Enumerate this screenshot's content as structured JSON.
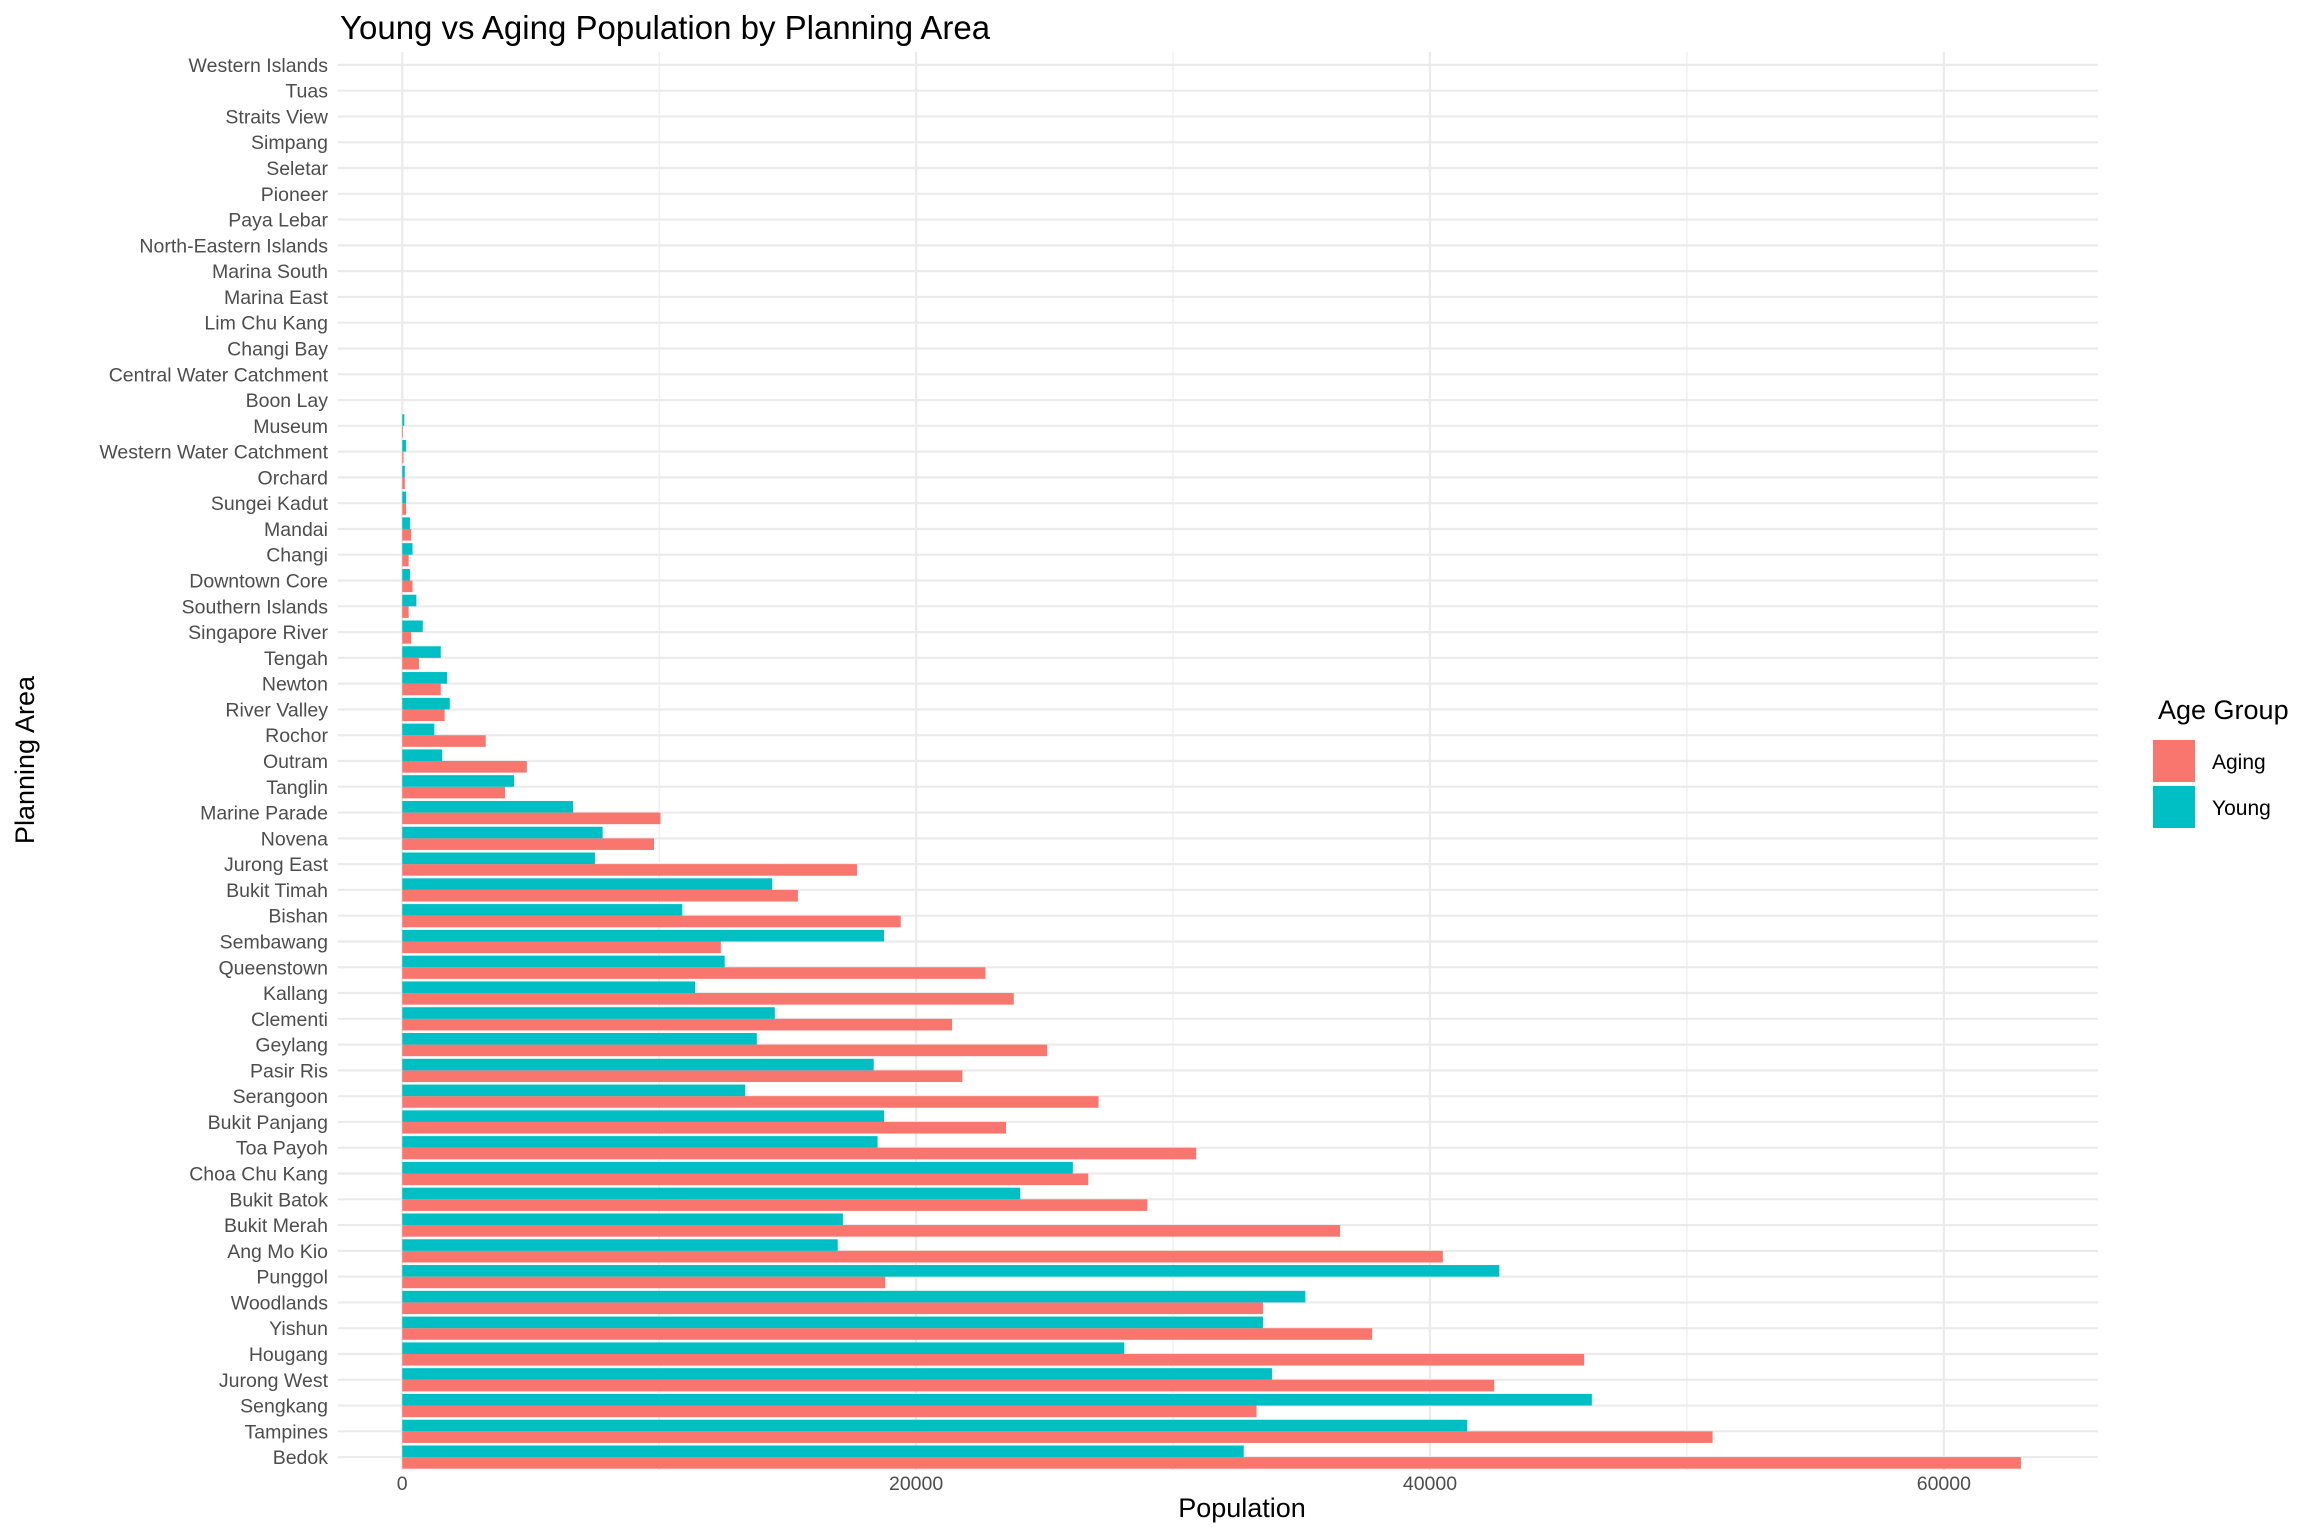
{
  "chart_data": {
    "type": "bar",
    "orientation": "horizontal",
    "title": "Young vs Aging Population by Planning Area",
    "xlabel": "Population",
    "ylabel": "Planning Area",
    "xlim": [
      -2500,
      66000
    ],
    "x_ticks": [
      0,
      20000,
      40000,
      60000
    ],
    "x_tick_labels": [
      "0",
      "20000",
      "40000",
      "60000"
    ],
    "grid": true,
    "legend": {
      "title": "Age Group",
      "position": "right"
    },
    "categories": [
      "Bedok",
      "Tampines",
      "Sengkang",
      "Jurong West",
      "Hougang",
      "Yishun",
      "Woodlands",
      "Punggol",
      "Ang Mo Kio",
      "Bukit Merah",
      "Bukit Batok",
      "Choa Chu Kang",
      "Toa Payoh",
      "Bukit Panjang",
      "Serangoon",
      "Pasir Ris",
      "Geylang",
      "Clementi",
      "Kallang",
      "Queenstown",
      "Sembawang",
      "Bishan",
      "Bukit Timah",
      "Jurong East",
      "Novena",
      "Marine Parade",
      "Tanglin",
      "Outram",
      "Rochor",
      "River Valley",
      "Newton",
      "Tengah",
      "Singapore River",
      "Southern Islands",
      "Downtown Core",
      "Changi",
      "Mandai",
      "Sungei Kadut",
      "Orchard",
      "Western Water Catchment",
      "Museum",
      "Boon Lay",
      "Central Water Catchment",
      "Changi Bay",
      "Lim Chu Kang",
      "Marina East",
      "Marina South",
      "North-Eastern Islands",
      "Paya Lebar",
      "Pioneer",
      "Seletar",
      "Simpang",
      "Straits View",
      "Tuas",
      "Western Islands"
    ],
    "series": [
      {
        "name": "Aging",
        "color": "#F8766D",
        "values": [
          63000,
          51000,
          33250,
          42500,
          46000,
          37750,
          33500,
          18800,
          40500,
          36500,
          29000,
          26700,
          30900,
          23500,
          27100,
          21800,
          25100,
          21400,
          23800,
          22700,
          12400,
          19400,
          15400,
          17700,
          9800,
          10050,
          4000,
          4850,
          3250,
          1650,
          1500,
          650,
          350,
          250,
          400,
          250,
          350,
          150,
          100,
          50,
          30,
          0,
          0,
          0,
          0,
          0,
          0,
          0,
          0,
          0,
          0,
          0,
          0,
          0,
          0
        ]
      },
      {
        "name": "Young",
        "color": "#00BFC4",
        "values": [
          32750,
          41450,
          46300,
          33850,
          28100,
          33500,
          35150,
          42700,
          16950,
          17150,
          24050,
          26100,
          18500,
          18750,
          13350,
          18350,
          13800,
          14500,
          11400,
          12550,
          18750,
          10900,
          14400,
          7500,
          7800,
          6650,
          4350,
          1550,
          1250,
          1850,
          1750,
          1500,
          800,
          550,
          300,
          400,
          300,
          150,
          100,
          150,
          80,
          0,
          0,
          0,
          0,
          0,
          0,
          0,
          0,
          0,
          0,
          0,
          0,
          0,
          0
        ]
      }
    ]
  }
}
